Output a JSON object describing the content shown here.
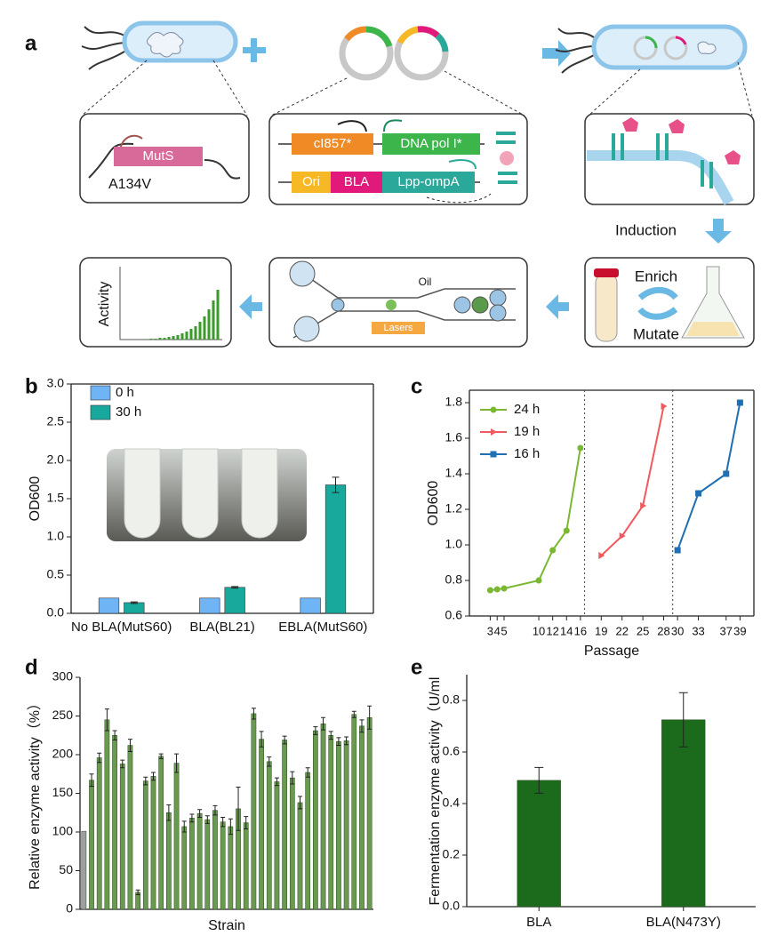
{
  "diagram": {
    "panel": "a",
    "muts": "MutS",
    "mutation": "A134V",
    "repressor": "cI857*",
    "polymerase": "DNA pol I*",
    "origin": "Ori",
    "enzyme": "BLA",
    "anchor": "Lpp-ompA",
    "induction": "Induction",
    "enrich": "Enrich",
    "mutate": "Mutate",
    "oil": "Oil",
    "lasers": "Lasers",
    "activity": "Activity"
  },
  "chart_data": [
    {
      "type": "bar",
      "panel": "b",
      "y_label": "OD600",
      "categories": [
        "No BLA(MutS60)",
        "BLA(BL21)",
        "EBLA(MutS60)"
      ],
      "series": [
        {
          "name": "0 h",
          "color": "#6fb4f5",
          "values": [
            0.2,
            0.2,
            0.2
          ]
        },
        {
          "name": "30 h",
          "color": "#19a99c",
          "values": [
            0.14,
            0.34,
            1.68
          ],
          "errors": [
            0.01,
            0.01,
            0.1
          ]
        }
      ],
      "ylim": [
        0,
        3
      ],
      "yticks": [
        {
          "value": 0,
          "label": "0.0"
        },
        0.5,
        {
          "value": 1,
          "label": "1.0"
        },
        1.5,
        {
          "value": 2,
          "label": "2.0"
        },
        2.5,
        {
          "value": 3,
          "label": "3.0"
        }
      ]
    },
    {
      "type": "line",
      "panel": "c",
      "x_label": "Passage",
      "y_label": "OD600",
      "series": [
        {
          "name": "24 h",
          "color": "#7ab833",
          "marker": "circle",
          "x": [
            3,
            4,
            5,
            10,
            12,
            14,
            16
          ],
          "values": [
            0.745,
            0.75,
            0.755,
            0.8,
            0.97,
            1.08,
            1.545
          ]
        },
        {
          "name": "19 h",
          "color": "#ef5a5f",
          "marker": "triangle",
          "x": [
            19,
            22,
            25,
            28
          ],
          "values": [
            0.94,
            1.05,
            1.22,
            1.78
          ]
        },
        {
          "name": "16 h",
          "color": "#1f6fb2",
          "marker": "square",
          "x": [
            30,
            33,
            37,
            39
          ],
          "values": [
            0.97,
            1.29,
            1.4,
            1.8
          ]
        }
      ],
      "dividers": [
        16.6,
        29.3
      ],
      "xlim": [
        0,
        41
      ],
      "xticks": [
        3,
        4,
        5,
        10,
        12,
        14,
        16,
        19,
        22,
        25,
        28,
        30,
        33,
        37,
        39
      ],
      "ylim": [
        0.6,
        1.87
      ],
      "yticks": [
        0.6,
        0.8,
        {
          "value": 1,
          "label": "1.0"
        },
        1.2,
        1.4,
        1.6,
        1.8
      ],
      "legend": "upper left"
    },
    {
      "type": "bar",
      "panel": "d",
      "x_label": "Strain",
      "y_label": "Relative enzyme activity（%）",
      "values": [
        101,
        167,
        196,
        245,
        225,
        188,
        212,
        22,
        166,
        172,
        198,
        125,
        189,
        107,
        118,
        124,
        116,
        128,
        113,
        107,
        130,
        112,
        253,
        220,
        191,
        165,
        219,
        170,
        138,
        177,
        231,
        240,
        225,
        217,
        218,
        252,
        237,
        248
      ],
      "errors": [
        null,
        8,
        6,
        14,
        6,
        5,
        8,
        3,
        5,
        5,
        3,
        10,
        12,
        7,
        5,
        5,
        5,
        6,
        6,
        10,
        28,
        8,
        7,
        10,
        6,
        5,
        5,
        8,
        8,
        6,
        5,
        8,
        5,
        5,
        5,
        4,
        8,
        15
      ],
      "colors": [
        "#9e9e9e",
        "#6a9a50",
        "#6a9a50",
        "#6a9a50",
        "#6a9a50",
        "#6a9a50",
        "#6a9a50",
        "#6a9a50",
        "#6a9a50",
        "#6a9a50",
        "#6a9a50",
        "#6a9a50",
        "#6a9a50",
        "#6a9a50",
        "#6a9a50",
        "#6a9a50",
        "#6a9a50",
        "#6a9a50",
        "#6a9a50",
        "#6a9a50",
        "#6a9a50",
        "#6a9a50",
        "#6a9a50",
        "#6a9a50",
        "#6a9a50",
        "#6a9a50",
        "#6a9a50",
        "#6a9a50",
        "#6a9a50",
        "#6a9a50",
        "#6a9a50",
        "#6a9a50",
        "#6a9a50",
        "#6a9a50",
        "#6a9a50",
        "#6a9a50",
        "#6a9a50",
        "#6a9a50"
      ],
      "ylim": [
        0,
        300
      ],
      "yticks": [
        0,
        50,
        100,
        150,
        200,
        250,
        300
      ]
    },
    {
      "type": "bar",
      "panel": "e",
      "y_label": "Fermentation enzyme activity（U/ml",
      "categories": [
        "BLA",
        "BLA(N473Y)"
      ],
      "values": [
        0.49,
        0.725
      ],
      "errors": [
        0.05,
        0.105
      ],
      "color": "#1c6b1c",
      "ylim": [
        0,
        0.9
      ],
      "yticks": [
        {
          "value": 0,
          "label": "0.0"
        },
        0.2,
        0.4,
        0.6,
        0.8
      ]
    }
  ]
}
